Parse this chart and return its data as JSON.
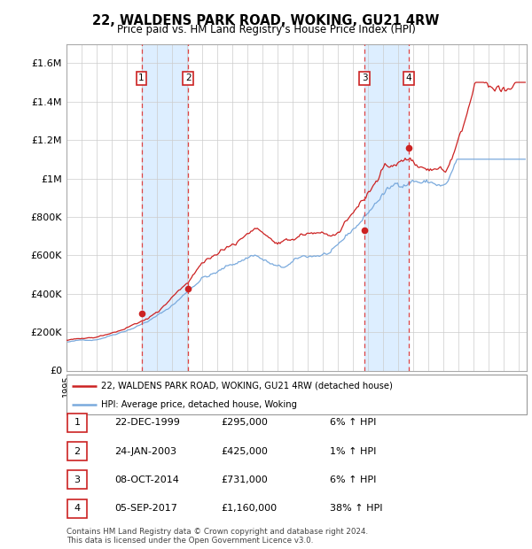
{
  "title": "22, WALDENS PARK ROAD, WOKING, GU21 4RW",
  "subtitle": "Price paid vs. HM Land Registry's House Price Index (HPI)",
  "xlim_start": 1995.0,
  "xlim_end": 2025.5,
  "ylim": [
    0,
    1700000
  ],
  "yticks": [
    0,
    200000,
    400000,
    600000,
    800000,
    1000000,
    1200000,
    1400000,
    1600000
  ],
  "ytick_labels": [
    "£0",
    "£200K",
    "£400K",
    "£600K",
    "£800K",
    "£1M",
    "£1.2M",
    "£1.4M",
    "£1.6M"
  ],
  "sales": [
    {
      "year": 1999.97,
      "price": 295000,
      "label": "1"
    },
    {
      "year": 2003.07,
      "price": 425000,
      "label": "2"
    },
    {
      "year": 2014.77,
      "price": 731000,
      "label": "3"
    },
    {
      "year": 2017.68,
      "price": 1160000,
      "label": "4"
    }
  ],
  "hpi_line_color": "#7aaadd",
  "price_line_color": "#cc2222",
  "sale_marker_color": "#cc2222",
  "dashed_line_color": "#dd4444",
  "shade_color": "#ddeeff",
  "legend_entries": [
    "22, WALDENS PARK ROAD, WOKING, GU21 4RW (detached house)",
    "HPI: Average price, detached house, Woking"
  ],
  "table_rows": [
    [
      "1",
      "22-DEC-1999",
      "£295,000",
      "6% ↑ HPI"
    ],
    [
      "2",
      "24-JAN-2003",
      "£425,000",
      "1% ↑ HPI"
    ],
    [
      "3",
      "08-OCT-2014",
      "£731,000",
      "6% ↑ HPI"
    ],
    [
      "4",
      "05-SEP-2017",
      "£1,160,000",
      "38% ↑ HPI"
    ]
  ],
  "footer": "Contains HM Land Registry data © Crown copyright and database right 2024.\nThis data is licensed under the Open Government Licence v3.0."
}
